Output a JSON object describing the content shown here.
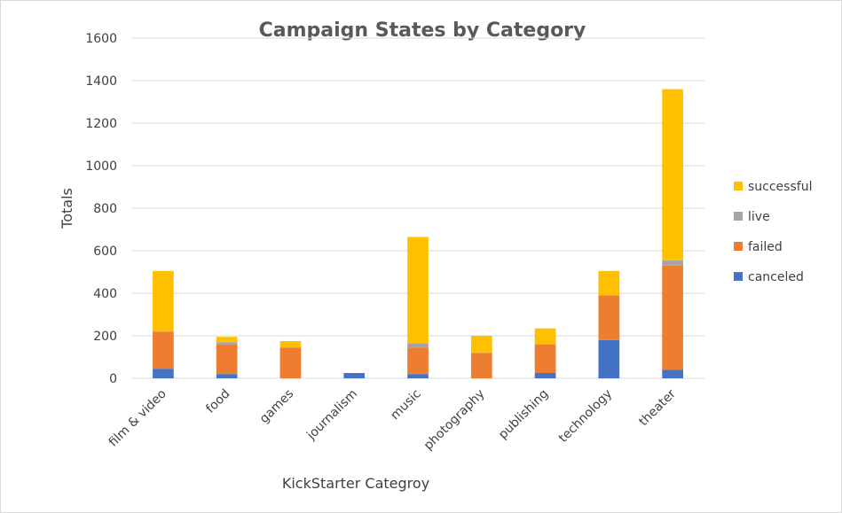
{
  "chart_data": {
    "type": "bar",
    "stacked": true,
    "title": "Campaign States by Category",
    "xlabel": "KickStarter Categroy",
    "ylabel": "Totals",
    "ylim": [
      0,
      1600
    ],
    "yticks": [
      0,
      200,
      400,
      600,
      800,
      1000,
      1200,
      1400,
      1600
    ],
    "grid": true,
    "legend_position": "right",
    "categories": [
      "film & video",
      "food",
      "games",
      "journalism",
      "music",
      "photography",
      "publishing",
      "technology",
      "theater"
    ],
    "series": [
      {
        "name": "canceled",
        "color": "#4472C4",
        "values": [
          45,
          20,
          0,
          25,
          20,
          0,
          25,
          180,
          40
        ]
      },
      {
        "name": "failed",
        "color": "#ED7D31",
        "values": [
          175,
          140,
          145,
          0,
          125,
          120,
          135,
          210,
          490
        ]
      },
      {
        "name": "live",
        "color": "#A5A5A5",
        "values": [
          0,
          10,
          0,
          0,
          20,
          0,
          0,
          0,
          25
        ]
      },
      {
        "name": "successful",
        "color": "#FFC000",
        "values": [
          285,
          25,
          30,
          0,
          500,
          80,
          75,
          115,
          805
        ]
      }
    ]
  }
}
